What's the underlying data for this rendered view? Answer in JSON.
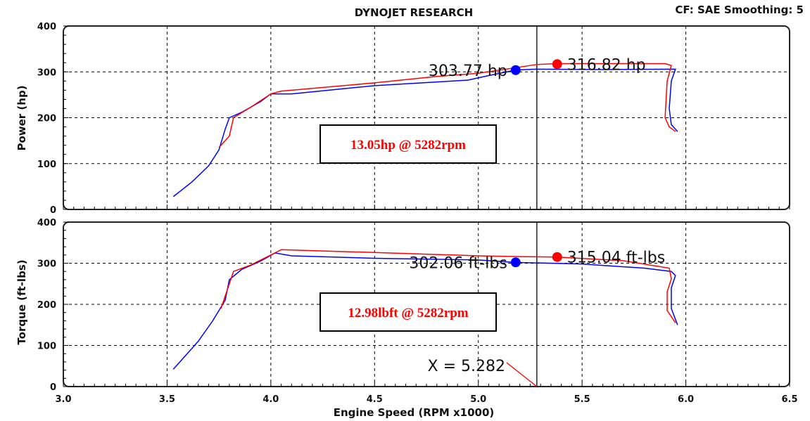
{
  "chart_data": [
    {
      "type": "line",
      "title": "DYNOJET RESEARCH",
      "header_right": "CF: SAE  Smoothing: 5",
      "ylabel": "Power (hp)",
      "ylim": [
        0,
        400
      ],
      "yticks": [
        0,
        100,
        200,
        300,
        400
      ],
      "series": [
        {
          "name": "run-blue",
          "color": "#0000ff",
          "points": [
            [
              3.53,
              28
            ],
            [
              3.62,
              60
            ],
            [
              3.7,
              95
            ],
            [
              3.75,
              130
            ],
            [
              3.78,
              175
            ],
            [
              3.8,
              200
            ],
            [
              3.86,
              212
            ],
            [
              3.95,
              235
            ],
            [
              4.0,
              252
            ],
            [
              4.1,
              252
            ],
            [
              4.5,
              270
            ],
            [
              4.8,
              278
            ],
            [
              4.95,
              282
            ],
            [
              5.05,
              292
            ],
            [
              5.18,
              304
            ],
            [
              5.28,
              306
            ],
            [
              5.6,
              305
            ],
            [
              5.95,
              306
            ],
            [
              5.93,
              280
            ],
            [
              5.92,
              220
            ],
            [
              5.93,
              185
            ],
            [
              5.96,
              170
            ]
          ]
        },
        {
          "name": "run-red",
          "color": "#ff0000",
          "points": [
            [
              3.75,
              135
            ],
            [
              3.8,
              160
            ],
            [
              3.82,
              200
            ],
            [
              3.9,
              222
            ],
            [
              4.0,
              252
            ],
            [
              4.05,
              258
            ],
            [
              4.5,
              276
            ],
            [
              4.8,
              290
            ],
            [
              5.0,
              297
            ],
            [
              5.15,
              307
            ],
            [
              5.28,
              316
            ],
            [
              5.38,
              318
            ],
            [
              5.9,
              318
            ],
            [
              5.93,
              314
            ],
            [
              5.91,
              280
            ],
            [
              5.9,
              200
            ],
            [
              5.92,
              180
            ],
            [
              5.95,
              170
            ]
          ]
        }
      ],
      "markers": [
        {
          "x": 5.18,
          "y": 303.77,
          "color": "#0000ff",
          "label": "303.77 hp",
          "side": "left"
        },
        {
          "x": 5.38,
          "y": 316.82,
          "color": "#ff0000",
          "label": "316.82 hp",
          "side": "right"
        }
      ],
      "annotation": "13.05hp @ 5282rpm"
    },
    {
      "type": "line",
      "ylabel": "Torque (ft-lbs)",
      "xlabel": "Engine Speed (RPM x1000)",
      "xlim": [
        3.0,
        6.5
      ],
      "xticks": [
        "3.0",
        "3.5",
        "4.0",
        "4.5",
        "5.0",
        "5.5",
        "6.0",
        "6.5"
      ],
      "ylim": [
        0,
        400
      ],
      "yticks": [
        0,
        100,
        200,
        300,
        400
      ],
      "series": [
        {
          "name": "run-blue",
          "color": "#0000ff",
          "points": [
            [
              3.53,
              42
            ],
            [
              3.65,
              110
            ],
            [
              3.72,
              160
            ],
            [
              3.78,
              210
            ],
            [
              3.8,
              260
            ],
            [
              3.86,
              285
            ],
            [
              3.95,
              305
            ],
            [
              4.02,
              325
            ],
            [
              4.1,
              318
            ],
            [
              4.5,
              312
            ],
            [
              5.0,
              308
            ],
            [
              5.18,
              302
            ],
            [
              5.5,
              298
            ],
            [
              5.8,
              288
            ],
            [
              5.93,
              280
            ],
            [
              5.95,
              270
            ],
            [
              5.93,
              240
            ],
            [
              5.93,
              190
            ],
            [
              5.96,
              150
            ]
          ]
        },
        {
          "name": "run-red",
          "color": "#ff0000",
          "points": [
            [
              3.76,
              190
            ],
            [
              3.82,
              280
            ],
            [
              3.9,
              295
            ],
            [
              4.0,
              320
            ],
            [
              4.05,
              333
            ],
            [
              4.5,
              326
            ],
            [
              5.0,
              318
            ],
            [
              5.2,
              316
            ],
            [
              5.38,
              315
            ],
            [
              5.7,
              306
            ],
            [
              5.92,
              288
            ],
            [
              5.93,
              262
            ],
            [
              5.91,
              230
            ],
            [
              5.91,
              185
            ],
            [
              5.95,
              155
            ]
          ]
        }
      ],
      "markers": [
        {
          "x": 5.18,
          "y": 302.06,
          "color": "#0000ff",
          "label": "302.06 ft-lbs",
          "side": "left"
        },
        {
          "x": 5.38,
          "y": 315.04,
          "color": "#ff0000",
          "label": "315.04 ft-lbs",
          "side": "right"
        }
      ],
      "annotation": "12.98lbft @ 5282rpm",
      "cursor_label": "X = 5.282"
    }
  ],
  "cursor_x": 5.282
}
